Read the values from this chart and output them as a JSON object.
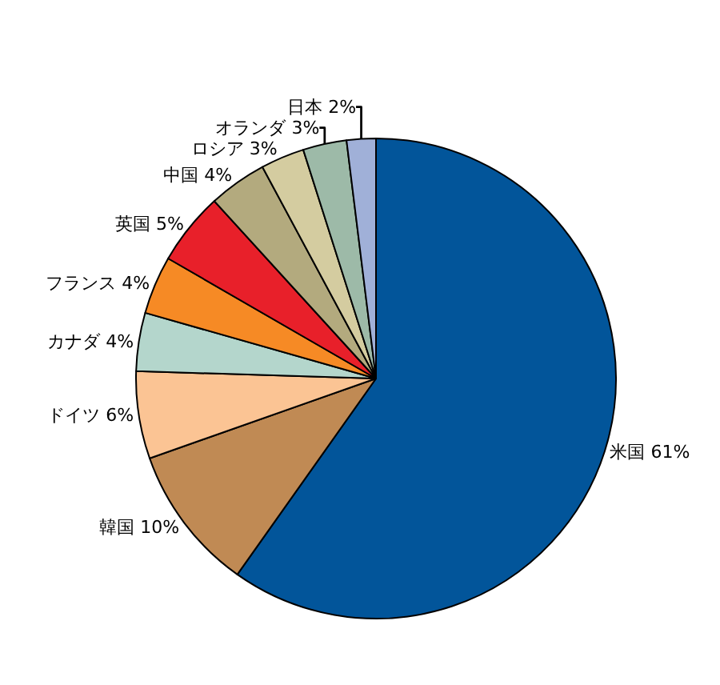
{
  "chart_data": {
    "type": "pie",
    "categories": [
      "米国",
      "韓国",
      "ドイツ",
      "カナダ",
      "フランス",
      "英国",
      "中国",
      "ロシア",
      "オランダ",
      "日本"
    ],
    "values": [
      61,
      10,
      6,
      4,
      4,
      5,
      4,
      3,
      3,
      2
    ],
    "value_labels": [
      "61%",
      "10%",
      "6%",
      "4%",
      "4%",
      "5%",
      "4%",
      "3%",
      "3%",
      "2%"
    ],
    "colors": [
      "#02559a",
      "#c08a54",
      "#fbc494",
      "#b4d6cc",
      "#f68a25",
      "#e8202a",
      "#b3aa7e",
      "#d4cca0",
      "#9dbaa8",
      "#a0b0d8"
    ]
  }
}
